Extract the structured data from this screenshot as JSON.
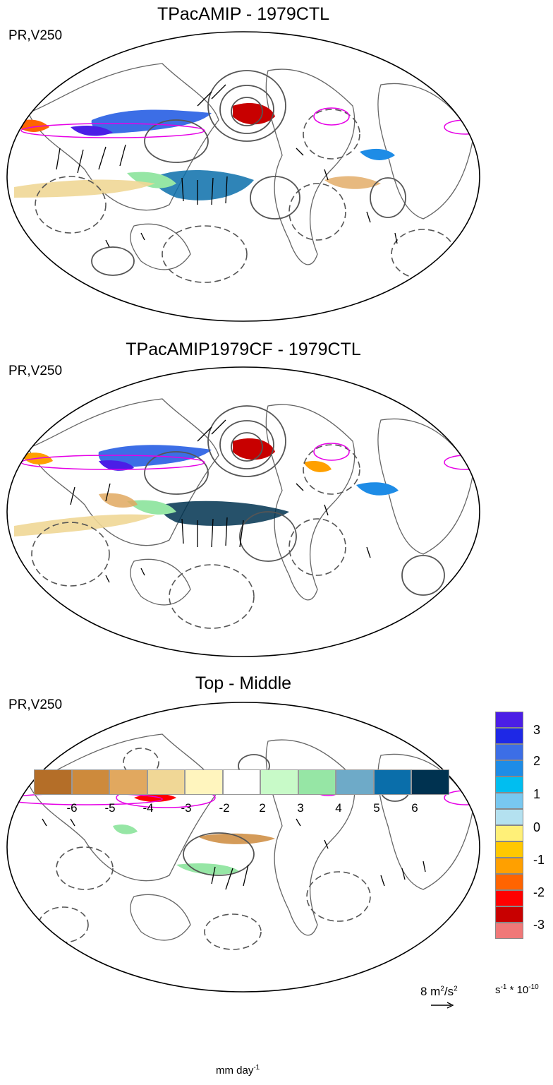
{
  "panels": [
    {
      "title": "TPacAMIP - 1979CTL",
      "label": "PR,V250"
    },
    {
      "title": "TPacAMIP1979CF - 1979CTL",
      "label": "PR,V250"
    },
    {
      "title": "Top - Middle",
      "label": "PR,V250"
    }
  ],
  "right_colorbar": {
    "tick_labels": [
      "3",
      "2",
      "1",
      "0",
      "-1",
      "-2",
      "-3"
    ],
    "units_base": "s",
    "units_exp1": "-1",
    "units_mid": " * 10",
    "units_exp2": "-10",
    "colors": [
      "#4b1ee6",
      "#1e28e6",
      "#3c6ee6",
      "#1e8ce6",
      "#00bef0",
      "#78c8f0",
      "#b4e1f0",
      "#fff078",
      "#ffc800",
      "#ffa000",
      "#ff6400",
      "#ff0000",
      "#c80000",
      "#f07878"
    ]
  },
  "reference_vector": {
    "value": "8 m",
    "exp1": "2",
    "slash": "/s",
    "exp2": "2"
  },
  "bottom_colorbar": {
    "tick_labels": [
      "-6",
      "-5",
      "-4",
      "-3",
      "-2",
      "2",
      "3",
      "4",
      "5",
      "6"
    ],
    "units_base": "mm day",
    "units_exp": "-1",
    "colors": [
      "#b46e28",
      "#cd8a3c",
      "#e1a85f",
      "#f0d796",
      "#fff5be",
      "#ffffff",
      "#c8fac8",
      "#96e6a5",
      "#6eaac8",
      "#0a6eaa",
      "#003250"
    ]
  }
}
